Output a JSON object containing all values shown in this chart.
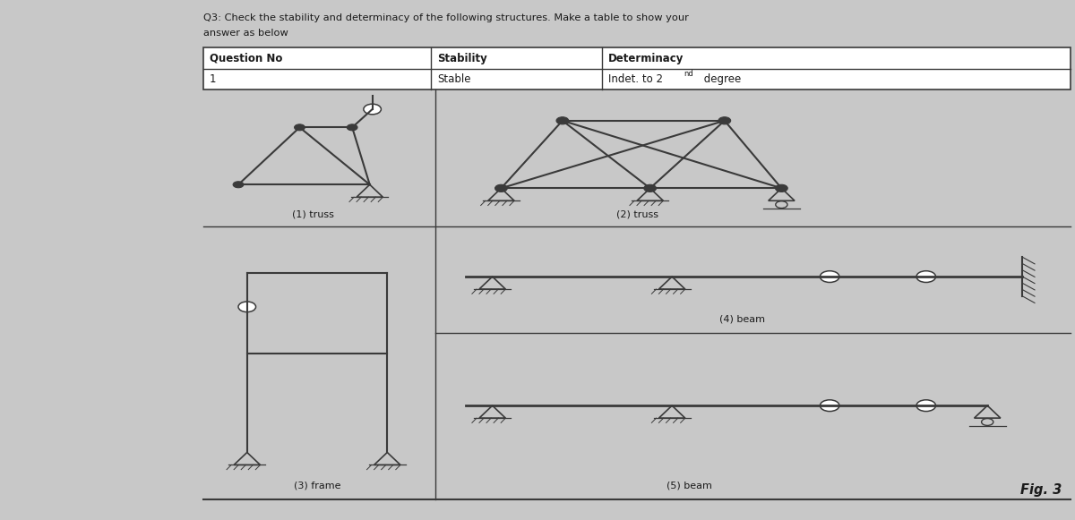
{
  "bg_color": "#c8c8c8",
  "paper_color": "#e8e8e5",
  "title_line1": "Q3: Check the stability and determinacy of the following structures. Make a table to show your",
  "title_line2": "answer as below",
  "table_headers": [
    "Question No",
    "Stability",
    "Determinacy"
  ],
  "table_row1_col0": "1",
  "table_row1_col1": "Stable",
  "table_row1_col2_pre": "Indet. to 2",
  "table_row1_col2_sup": "nd",
  "table_row1_col2_post": " degree",
  "label1": "(1) truss",
  "label2": "(2) truss",
  "label3": "(3) frame",
  "label4": "(4) beam",
  "label5": "(5) beam",
  "fig_label": "Fig. 3",
  "line_color": "#3a3a3a",
  "text_color": "#1a1a1a",
  "left_bg": "#d5d5d2",
  "right_bg": "#e0e0dd"
}
